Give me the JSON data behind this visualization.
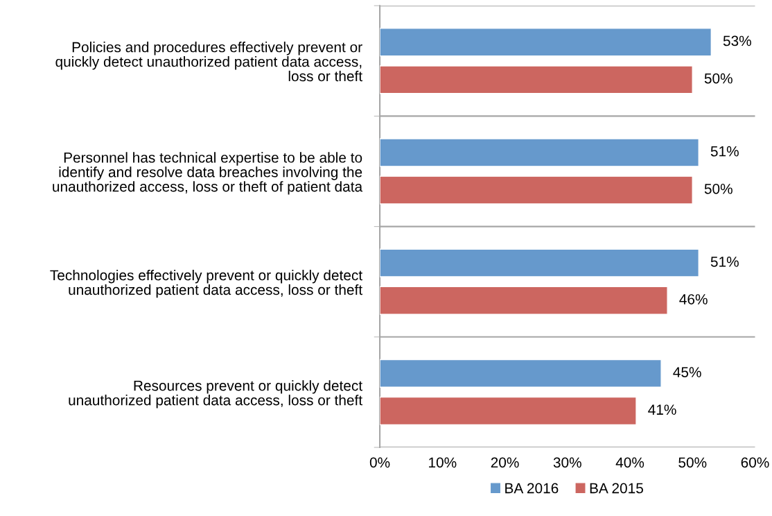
{
  "chart_data": {
    "type": "bar",
    "orientation": "horizontal",
    "categories": [
      "Policies and procedures effectively prevent or\nquickly detect unauthorized patient data access,\nloss or theft",
      "Personnel has technical expertise to be able to\nidentify and resolve data breaches involving the\nunauthorized access, loss or theft of patient data",
      "Technologies effectively prevent or quickly detect\nunauthorized patient data access, loss or theft",
      "Resources prevent or quickly detect\nunauthorized patient data access, loss or theft"
    ],
    "series": [
      {
        "name": "BA 2016",
        "color": "#6699cc",
        "values": [
          53,
          51,
          51,
          45
        ],
        "value_labels": [
          "53%",
          "51%",
          "51%",
          "45%"
        ]
      },
      {
        "name": "BA 2015",
        "color": "#cc6660",
        "values": [
          50,
          50,
          46,
          41
        ],
        "value_labels": [
          "50%",
          "50%",
          "46%",
          "41%"
        ]
      }
    ],
    "xlim": [
      0,
      60
    ],
    "xticks": [
      {
        "value": 0,
        "label": "0%"
      },
      {
        "value": 10,
        "label": "10%"
      },
      {
        "value": 20,
        "label": "20%"
      },
      {
        "value": 30,
        "label": "30%"
      },
      {
        "value": 40,
        "label": "40%"
      },
      {
        "value": 50,
        "label": "50%"
      },
      {
        "value": 60,
        "label": "60%"
      }
    ],
    "grid": "y",
    "legend": "bottom"
  }
}
